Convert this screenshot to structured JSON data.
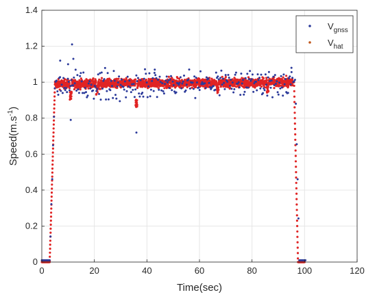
{
  "chart_data": {
    "type": "scatter",
    "xlabel": "Time(sec)",
    "ylabel": {
      "base": "Speed(m.s",
      "sup": "-1",
      "close": ")"
    },
    "xlim": [
      0,
      120
    ],
    "ylim": [
      0,
      1.4
    ],
    "xticks": [
      "0",
      "20",
      "40",
      "60",
      "80",
      "100",
      "120"
    ],
    "yticks": [
      "0",
      "0.2",
      "0.4",
      "0.6",
      "0.8",
      "1",
      "1.2",
      "1.4"
    ],
    "grid": true,
    "legend_position": "top-right",
    "colors": {
      "gnss": "#2b3a9a",
      "hat": "#e02424",
      "hat_marker": "#c0561b"
    },
    "series": [
      {
        "name": "V_gnss",
        "label_main": "V",
        "label_sub": "gnss",
        "style": "dots",
        "profile": [
          [
            0,
            0.01
          ],
          [
            3,
            0.01
          ],
          [
            5,
            0.98
          ],
          [
            95,
            1.0
          ],
          [
            96.5,
            1.0
          ],
          [
            98,
            0.01
          ],
          [
            100,
            0.01
          ]
        ],
        "plateau_spread": 0.04,
        "outliers": [
          [
            10,
            1.1
          ],
          [
            11.5,
            1.21
          ],
          [
            12,
            1.13
          ],
          [
            7,
            1.12
          ],
          [
            11,
            0.79
          ],
          [
            36,
            0.72
          ],
          [
            95,
            1.08
          ],
          [
            43,
            1.07
          ]
        ]
      },
      {
        "name": "V_hat",
        "label_main": "V",
        "label_sub": "hat",
        "style": "thick-dotted-line",
        "profile": [
          [
            0,
            0.0
          ],
          [
            3,
            0.0
          ],
          [
            5,
            0.99
          ],
          [
            95.5,
            1.0
          ],
          [
            96,
            1.0
          ],
          [
            97.5,
            0.0
          ],
          [
            100,
            0.0
          ]
        ],
        "plateau_spread": 0.02,
        "dips": [
          [
            11,
            0.9
          ],
          [
            36,
            0.86
          ],
          [
            21,
            0.93
          ],
          [
            67,
            0.94
          ],
          [
            86,
            0.94
          ]
        ]
      }
    ]
  }
}
